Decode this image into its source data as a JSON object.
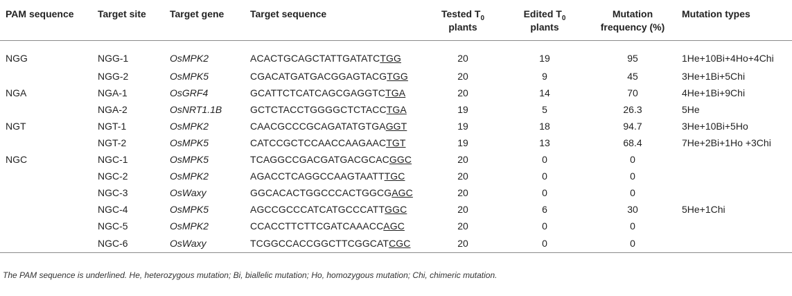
{
  "headers": {
    "pam": "PAM sequence",
    "site": "Target site",
    "gene": "Target gene",
    "sequence": "Target sequence",
    "tested_main": "Tested T",
    "tested_sub": "0",
    "tested_tail": "plants",
    "edited_main": "Edited T",
    "edited_sub": "0",
    "edited_tail": "plants",
    "mutfreq_line1": "Mutation",
    "mutfreq_line2": "frequency (%)",
    "types": "Mutation types"
  },
  "rows": [
    {
      "pam": "NGG",
      "site": "NGG-1",
      "gene": "OsMPK2",
      "seq": "ACACTGCAGCTATTGATATC",
      "seq_pam": "TGG",
      "tested": "20",
      "edited": "19",
      "freq": "95",
      "types": "1He+10Bi+4Ho+4Chi"
    },
    {
      "pam": "",
      "site": "NGG-2",
      "gene": "OsMPK5",
      "seq": "CGACATGATGACGGAGTACG",
      "seq_pam": "TGG",
      "tested": "20",
      "edited": "9",
      "freq": "45",
      "types": "3He+1Bi+5Chi"
    },
    {
      "pam": "NGA",
      "site": "NGA-1",
      "gene": "OsGRF4",
      "seq": "GCATTCTCATCAGCGAGGTC",
      "seq_pam": "TGA",
      "tested": "20",
      "edited": "14",
      "freq": "70",
      "types": "4He+1Bi+9Chi"
    },
    {
      "pam": "",
      "site": "NGA-2",
      "gene": "OsNRT1.1B",
      "seq": "GCTCTACCTGGGGCTCTACC",
      "seq_pam": "TGA",
      "tested": "19",
      "edited": "5",
      "freq": "26.3",
      "types": "5He"
    },
    {
      "pam": "NGT",
      "site": "NGT-1",
      "gene": "OsMPK2",
      "seq": "CAACGCCCGCAGATATGTGA",
      "seq_pam": "GGT",
      "tested": "19",
      "edited": "18",
      "freq": "94.7",
      "types": "3He+10Bi+5Ho"
    },
    {
      "pam": "",
      "site": "NGT-2",
      "gene": "OsMPK5",
      "seq": "CATCCGCTCCAACCAAGAAC",
      "seq_pam": "TGT",
      "tested": "19",
      "edited": "13",
      "freq": "68.4",
      "types": "7He+2Bi+1Ho +3Chi"
    },
    {
      "pam": "NGC",
      "site": "NGC-1",
      "gene": "OsMPK5",
      "seq": "TCAGGCCGACGATGACGCAC",
      "seq_pam": "GGC",
      "tested": "20",
      "edited": "0",
      "freq": "0",
      "types": ""
    },
    {
      "pam": "",
      "site": "NGC-2",
      "gene": "OsMPK2",
      "seq": "AGACCTCAGGCCAAGTAATT",
      "seq_pam": "TGC",
      "tested": "20",
      "edited": "0",
      "freq": "0",
      "types": ""
    },
    {
      "pam": "",
      "site": "NGC-3",
      "gene": "OsWaxy",
      "seq": "GGCACACTGGCCCACTGGCG",
      "seq_pam": "AGC",
      "tested": "20",
      "edited": "0",
      "freq": "0",
      "types": ""
    },
    {
      "pam": "",
      "site": "NGC-4",
      "gene": "OsMPK5",
      "seq": "AGCCGCCCATCATGCCCATT",
      "seq_pam": "GGC",
      "tested": "20",
      "edited": "6",
      "freq": "30",
      "types": "5He+1Chi"
    },
    {
      "pam": "",
      "site": "NGC-5",
      "gene": "OsMPK2",
      "seq": "CCACCTTCTTCGATCAAACC",
      "seq_pam": "AGC",
      "tested": "20",
      "edited": "0",
      "freq": "0",
      "types": ""
    },
    {
      "pam": "",
      "site": "NGC-6",
      "gene": "OsWaxy",
      "seq": "TCGGCCACCGGCTTCGGCAT",
      "seq_pam": "CGC",
      "tested": "20",
      "edited": "0",
      "freq": "0",
      "types": ""
    }
  ],
  "footnote": "The PAM sequence is underlined. He, heterozygous mutation; Bi, biallelic mutation; Ho, homozygous mutation; Chi, chimeric mutation."
}
